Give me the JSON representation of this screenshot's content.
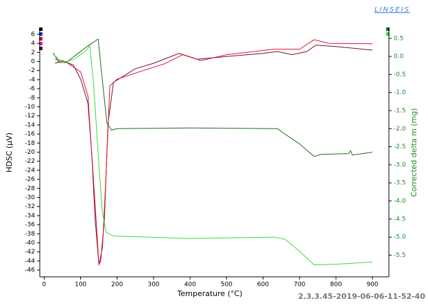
{
  "chart_data": {
    "type": "line",
    "brand": "LINSEIS",
    "footer": "2.3.3.45-2019-06-06-11-52-40",
    "xlabel": "Temperature (°C)",
    "ylabel": "HDSC (µV)",
    "y2label": "Corrected delta m (mg)",
    "xlim": [
      -12,
      945
    ],
    "xticks": [
      0,
      100,
      200,
      300,
      400,
      500,
      600,
      700,
      800,
      900
    ],
    "ylim": [
      -47.5,
      7.5
    ],
    "yticks": [
      6,
      4,
      2,
      0,
      -2,
      -4,
      -6,
      -8,
      -10,
      -12,
      -14,
      -16,
      -18,
      -20,
      -22,
      -24,
      -26,
      -28,
      -30,
      -32,
      -34,
      -36,
      -38,
      -40,
      -42,
      -44,
      -46
    ],
    "y2lim": [
      -6.1,
      0.8
    ],
    "y2ticks": [
      0.5,
      {
        "value": 0,
        "label": "0.0"
      },
      -0.5,
      {
        "value": -1,
        "label": "-1.0"
      },
      -1.5,
      {
        "value": -2,
        "label": "-2.0"
      },
      -2.5,
      {
        "value": -3,
        "label": "-3.0"
      },
      -3.5,
      {
        "value": -4,
        "label": "-4.0"
      },
      -4.5,
      {
        "value": -5,
        "label": "-5.0"
      },
      -5.5
    ],
    "series": [
      {
        "color": "#6b1030",
        "x": [
          30,
          50,
          80,
          100,
          120,
          130,
          140,
          150,
          155,
          165,
          175,
          190,
          250,
          300,
          370,
          420,
          500,
          600,
          640,
          680,
          720,
          745,
          800,
          900
        ],
        "values": [
          -0.4,
          0.2,
          -0.8,
          -3.9,
          -9.2,
          -19.8,
          -35,
          -44.8,
          -44,
          -35,
          -13.7,
          -4.6,
          -1.6,
          -0.4,
          1.8,
          0.5,
          1.1,
          1.8,
          2.2,
          1.5,
          2.2,
          3.6,
          3.3,
          2.5
        ]
      },
      {
        "color": "#e0102a",
        "x": [
          30,
          60,
          100,
          120,
          140,
          150,
          160,
          170,
          180,
          200,
          260,
          330,
          380,
          430,
          500,
          630,
          700,
          740,
          780,
          900
        ],
        "values": [
          0.5,
          -0.1,
          -2.3,
          -7.6,
          -31.9,
          -44.8,
          -41,
          -24.3,
          -5.4,
          -3.9,
          -2.3,
          -0.5,
          1.5,
          0.2,
          1.5,
          2.7,
          2.7,
          4.8,
          4.0,
          3.9
        ]
      },
      {
        "color": "#1e6b1e",
        "axis": "y2",
        "x": [
          25,
          40,
          60,
          90,
          120,
          148,
          160,
          172,
          185,
          200,
          400,
          640,
          650,
          700,
          740,
          760,
          835,
          840,
          845,
          900
        ],
        "values": [
          0.1,
          -0.17,
          -0.17,
          0.06,
          0.29,
          0.48,
          -0.7,
          -1.85,
          -2.04,
          -2.0,
          -1.98,
          -2.0,
          -2.08,
          -2.42,
          -2.77,
          -2.71,
          -2.69,
          -2.61,
          -2.73,
          -2.65
        ]
      },
      {
        "color": "#33dd33",
        "axis": "y2",
        "x": [
          25,
          50,
          80,
          115,
          125,
          135,
          150,
          160,
          170,
          190,
          400,
          630,
          660,
          700,
          740,
          800,
          900
        ],
        "values": [
          0.06,
          -0.17,
          -0.09,
          0.16,
          0.29,
          -0.7,
          -3.0,
          -4.33,
          -4.87,
          -4.97,
          -5.04,
          -5.0,
          -5.06,
          -5.39,
          -5.77,
          -5.75,
          -5.69
        ]
      }
    ]
  }
}
